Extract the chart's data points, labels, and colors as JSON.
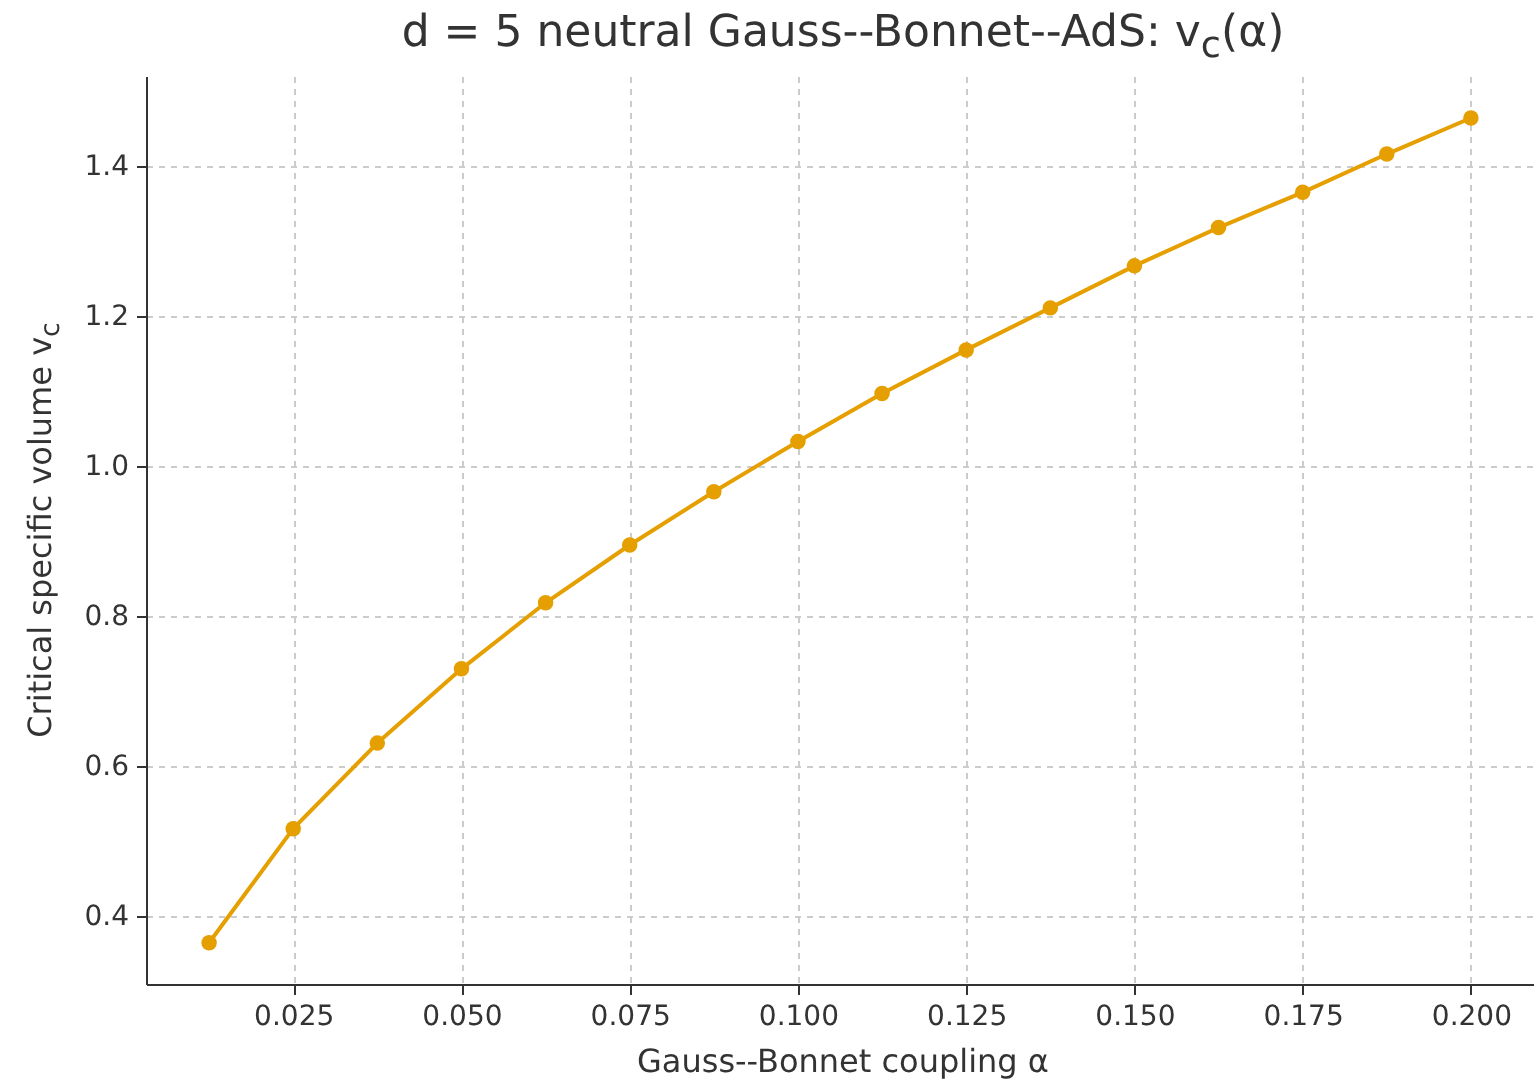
{
  "chart_data": {
    "type": "line",
    "title": "d = 5 neutral Gauss--Bonnet--AdS: v$_{c}$(α)",
    "xlabel": "Gauss--Bonnet coupling α",
    "ylabel": "Critical specific volume v$_{c}$",
    "x": [
      0.0125,
      0.025,
      0.0375,
      0.05,
      0.0625,
      0.075,
      0.0875,
      0.1,
      0.1125,
      0.125,
      0.1375,
      0.15,
      0.1625,
      0.175,
      0.1875,
      0.2
    ],
    "series": [
      {
        "color": "#e69f00",
        "values": [
          0.365,
          0.517,
          0.631,
          0.73,
          0.818,
          0.895,
          0.966,
          1.033,
          1.097,
          1.155,
          1.211,
          1.267,
          1.318,
          1.365,
          1.416,
          1.464
        ]
      }
    ],
    "xlim": [
      0.003125,
      0.209375
    ],
    "ylim": [
      0.31,
      1.52
    ],
    "xticks": [
      {
        "value": 0.025,
        "label": "0.025"
      },
      {
        "value": 0.05,
        "label": "0.050"
      },
      {
        "value": 0.075,
        "label": "0.075"
      },
      {
        "value": 0.1,
        "label": "0.100"
      },
      {
        "value": 0.125,
        "label": "0.125"
      },
      {
        "value": 0.15,
        "label": "0.150"
      },
      {
        "value": 0.175,
        "label": "0.175"
      },
      {
        "value": 0.2,
        "label": "0.200"
      }
    ],
    "yticks": [
      {
        "value": 0.4,
        "label": "0.4"
      },
      {
        "value": 0.6,
        "label": "0.6"
      },
      {
        "value": 0.8,
        "label": "0.8"
      },
      {
        "value": 1.0,
        "label": "1.0"
      },
      {
        "value": 1.2,
        "label": "1.2"
      },
      {
        "value": 1.4,
        "label": "1.4"
      }
    ],
    "grid": true,
    "marker": "circle",
    "line_style": "solid"
  }
}
